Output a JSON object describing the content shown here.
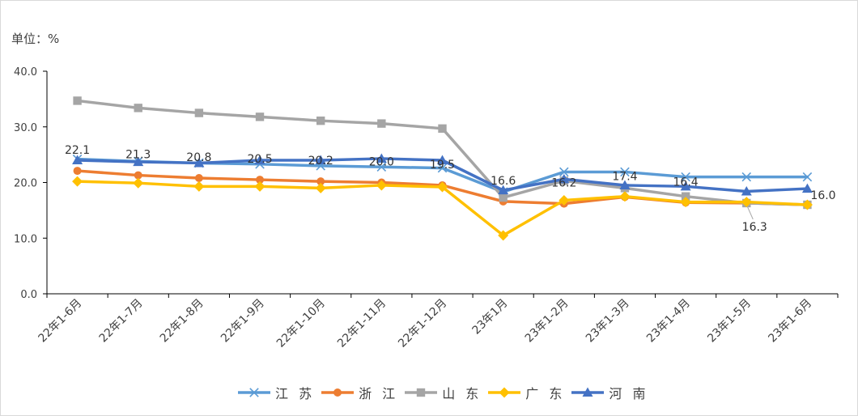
{
  "unit_label": "单位：%",
  "chart_data": {
    "type": "line",
    "title": "",
    "xlabel": "",
    "ylabel": "",
    "categories": [
      "22年1-6月",
      "22年1-7月",
      "22年1-8月",
      "22年1-9月",
      "22年1-10月",
      "22年1-11月",
      "22年1-12月",
      "23年1月",
      "23年1-2月",
      "23年1-3月",
      "23年1-4月",
      "23年1-5月",
      "23年1-6月"
    ],
    "ylim": [
      0,
      40
    ],
    "yticks": [
      "0.0",
      "10.0",
      "20.0",
      "30.0",
      "40.0"
    ],
    "grid": false,
    "legend_position": "bottom",
    "series": [
      {
        "name": "江苏",
        "legend_label": "江 苏",
        "color": "#5B9BD5",
        "marker": "x",
        "values": [
          24.2,
          23.8,
          23.5,
          23.3,
          23.0,
          22.8,
          22.6,
          18.3,
          21.9,
          21.9,
          21.0,
          21.0,
          21.0
        ]
      },
      {
        "name": "浙江",
        "legend_label": "浙 江",
        "color": "#ED7D31",
        "marker": "circle",
        "values": [
          22.1,
          21.3,
          20.8,
          20.5,
          20.2,
          20.0,
          19.5,
          16.6,
          16.2,
          17.4,
          16.4,
          16.3,
          16.0
        ]
      },
      {
        "name": "山东",
        "legend_label": "山 东",
        "color": "#A5A5A5",
        "marker": "square",
        "values": [
          34.7,
          33.4,
          32.5,
          31.8,
          31.1,
          30.6,
          29.7,
          17.3,
          20.3,
          19.0,
          17.5,
          16.3,
          16.0
        ]
      },
      {
        "name": "广东",
        "legend_label": "广 东",
        "color": "#FFC000",
        "marker": "diamond",
        "values": [
          20.2,
          19.9,
          19.3,
          19.3,
          19.0,
          19.5,
          19.2,
          10.5,
          16.8,
          17.5,
          16.5,
          16.5,
          16.0
        ]
      },
      {
        "name": "河南",
        "legend_label": "河 南",
        "color": "#4472C4",
        "marker": "triangle",
        "values": [
          24.0,
          23.7,
          23.5,
          24.0,
          24.0,
          24.3,
          24.0,
          18.6,
          20.6,
          19.5,
          19.3,
          18.4,
          18.9
        ]
      }
    ],
    "data_labels": [
      {
        "series": "浙江",
        "index": 0,
        "text": "22.1",
        "pos": "above"
      },
      {
        "series": "浙江",
        "index": 1,
        "text": "21.3",
        "pos": "above"
      },
      {
        "series": "浙江",
        "index": 2,
        "text": "20.8",
        "pos": "above"
      },
      {
        "series": "浙江",
        "index": 3,
        "text": "20.5",
        "pos": "above"
      },
      {
        "series": "浙江",
        "index": 4,
        "text": "20.2",
        "pos": "above"
      },
      {
        "series": "浙江",
        "index": 5,
        "text": "20.0",
        "pos": "above"
      },
      {
        "series": "浙江",
        "index": 6,
        "text": "19.5",
        "pos": "above"
      },
      {
        "series": "浙江",
        "index": 7,
        "text": "16.6",
        "pos": "above"
      },
      {
        "series": "浙江",
        "index": 8,
        "text": "16.2",
        "pos": "above"
      },
      {
        "series": "浙江",
        "index": 9,
        "text": "17.4",
        "pos": "above"
      },
      {
        "series": "浙江",
        "index": 10,
        "text": "16.4",
        "pos": "above"
      },
      {
        "series": "浙江",
        "index": 11,
        "text": "16.3",
        "pos": "below"
      },
      {
        "series": "浙江",
        "index": 12,
        "text": "16.0",
        "pos": "right"
      }
    ]
  }
}
